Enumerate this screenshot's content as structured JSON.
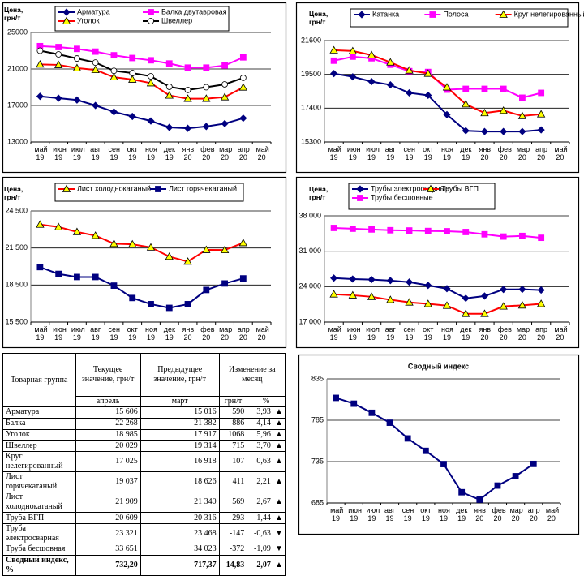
{
  "chart_data": [
    {
      "type": "line",
      "y_label": "Цена, грн/т",
      "categories": [
        "май 19",
        "июн 19",
        "июл 19",
        "авг 19",
        "сен 19",
        "окт 19",
        "ноя 19",
        "дек 19",
        "янв 20",
        "фев 20",
        "мар 20",
        "апр 20",
        "май 20"
      ],
      "ylim": [
        13000,
        25000
      ],
      "yticks": [
        13000,
        17000,
        21000,
        25000
      ],
      "grid": true,
      "series": [
        {
          "name": "Арматура",
          "color": "#000080",
          "marker": "diamond",
          "marker_fill": "#000080",
          "values": [
            18000,
            17800,
            17600,
            17000,
            16300,
            15800,
            15300,
            14600,
            14500,
            14700,
            15016,
            15606,
            null
          ]
        },
        {
          "name": "Балка двутавровая",
          "color": "#ff00ff",
          "marker": "square",
          "marker_fill": "#ff00ff",
          "values": [
            23500,
            23400,
            23200,
            22900,
            22500,
            22200,
            21950,
            21600,
            21150,
            21150,
            21382,
            22268,
            null
          ]
        },
        {
          "name": "Уголок",
          "color": "#ff0000",
          "marker": "triangle",
          "marker_fill": "#ffff00",
          "values": [
            21500,
            21450,
            21100,
            20900,
            20100,
            19850,
            19450,
            18100,
            17750,
            17750,
            17917,
            18985,
            null
          ]
        },
        {
          "name": "Швеллер",
          "color": "#000000",
          "marker": "circle",
          "marker_fill": "#ffffff",
          "values": [
            23000,
            22600,
            22150,
            21700,
            20800,
            20550,
            20200,
            19050,
            18700,
            19000,
            19314,
            20029,
            null
          ]
        }
      ]
    },
    {
      "type": "line",
      "y_label": "Цена, грн/т",
      "categories": [
        "май 19",
        "июн 19",
        "июл 19",
        "авг 19",
        "сен 19",
        "окт 19",
        "ноя 19",
        "дек 19",
        "янв 20",
        "фев 20",
        "мар 20",
        "апр 20",
        "май 20"
      ],
      "ylim": [
        15300,
        21600
      ],
      "yticks": [
        15300,
        17400,
        19500,
        21600
      ],
      "grid": true,
      "series": [
        {
          "name": "Катанка",
          "color": "#000080",
          "marker": "diamond",
          "marker_fill": "#000080",
          "values": [
            19550,
            19350,
            19050,
            18850,
            18350,
            18200,
            17000,
            16000,
            15950,
            15950,
            15950,
            16050,
            null
          ]
        },
        {
          "name": "Полоса",
          "color": "#ff00ff",
          "marker": "square",
          "marker_fill": "#ff00ff",
          "values": [
            20350,
            20600,
            20500,
            20100,
            19700,
            19650,
            18550,
            18600,
            18600,
            18600,
            18050,
            18350,
            null
          ]
        },
        {
          "name": "Круг нелегированный",
          "color": "#ff0000",
          "marker": "triangle",
          "marker_fill": "#ffff00",
          "values": [
            21000,
            20950,
            20700,
            20250,
            19750,
            19550,
            18700,
            17650,
            17100,
            17250,
            16918,
            17025,
            null
          ]
        }
      ]
    },
    {
      "type": "line",
      "y_label": "Цена, грн/т",
      "categories": [
        "май 19",
        "июн 19",
        "июл 19",
        "авг 19",
        "сен 19",
        "окт 19",
        "ноя 19",
        "дек 19",
        "янв 20",
        "фев 20",
        "мар 20",
        "апр 20",
        "май 20"
      ],
      "ylim": [
        15500,
        24500
      ],
      "yticks": [
        {
          "value": 15500,
          "label": "15 500"
        },
        {
          "value": 18500,
          "label": "18 500"
        },
        {
          "value": 21500,
          "label": "21 500"
        },
        {
          "value": 24500,
          "label": "24 500"
        }
      ],
      "grid": true,
      "series": [
        {
          "name": "Лист холоднокатаный",
          "color": "#ff0000",
          "marker": "triangle",
          "marker_fill": "#ffff00",
          "values": [
            23400,
            23200,
            22800,
            22500,
            21850,
            21800,
            21550,
            20800,
            20400,
            21350,
            21340,
            21909,
            null
          ]
        },
        {
          "name": "Лист горячекатаный",
          "color": "#000080",
          "marker": "square",
          "marker_fill": "#000080",
          "values": [
            19950,
            19400,
            19150,
            19150,
            18450,
            17450,
            16950,
            16650,
            16950,
            18100,
            18626,
            19037,
            null
          ]
        }
      ]
    },
    {
      "type": "line",
      "y_label": "Цена, грн/т",
      "categories": [
        "май 19",
        "июн 19",
        "июл 19",
        "авг 19",
        "сен 19",
        "окт 19",
        "ноя 19",
        "дек 19",
        "янв 20",
        "фев 20",
        "мар 20",
        "апр 20",
        "май 20"
      ],
      "ylim": [
        17000,
        38000
      ],
      "yticks": [
        {
          "value": 17000,
          "label": "17 000"
        },
        {
          "value": 24000,
          "label": "24 000"
        },
        {
          "value": 31000,
          "label": "31 000"
        },
        {
          "value": 38000,
          "label": "38 000"
        }
      ],
      "grid": true,
      "series": [
        {
          "name": "Трубы электросварные",
          "color": "#000080",
          "marker": "diamond",
          "marker_fill": "#000080",
          "values": [
            25700,
            25500,
            25400,
            25200,
            24900,
            24250,
            23600,
            21700,
            22150,
            23450,
            23468,
            23321,
            null
          ]
        },
        {
          "name": "Трубы ВГП",
          "color": "#ff0000",
          "marker": "triangle",
          "marker_fill": "#ffff00",
          "values": [
            22500,
            22300,
            22000,
            21400,
            20900,
            20600,
            20250,
            18650,
            18650,
            20100,
            20316,
            20609,
            null
          ]
        },
        {
          "name": "Трубы бесшовные",
          "color": "#ff00ff",
          "marker": "square",
          "marker_fill": "#ff00ff",
          "values": [
            35600,
            35450,
            35300,
            35150,
            35100,
            35000,
            34950,
            34800,
            34350,
            33900,
            34023,
            33651,
            null
          ]
        }
      ]
    },
    {
      "type": "line",
      "title": "Сводный индекс",
      "categories": [
        "май 19",
        "июн 19",
        "июл 19",
        "авг 19",
        "сен 19",
        "окт 19",
        "ноя 19",
        "дек 19",
        "янв 20",
        "фев 20",
        "мар 20",
        "апр 20",
        "май 20"
      ],
      "ylim": [
        685,
        835
      ],
      "yticks": [
        685,
        735,
        785,
        835
      ],
      "grid": true,
      "series": [
        {
          "color": "#000080",
          "marker": "square",
          "marker_fill": "#000080",
          "values": [
            812,
            805,
            794,
            782,
            763,
            748,
            732,
            698,
            689,
            706,
            717.37,
            732.2,
            null
          ]
        }
      ]
    }
  ],
  "table": {
    "headers": {
      "group": "Товарная группа",
      "current": "Текущее значение, грн/т",
      "current_month": "апрель",
      "previous": "Предыдущее значение, грн/т",
      "previous_month": "март",
      "change": "Изменение за месяц",
      "change_abs": "грн/т",
      "change_pct": "%"
    },
    "rows": [
      [
        "Арматура",
        "15 606",
        "15 016",
        "590",
        "3,93",
        "▲"
      ],
      [
        "Балка",
        "22 268",
        "21 382",
        "886",
        "4,14",
        "▲"
      ],
      [
        "Уголок",
        "18 985",
        "17 917",
        "1068",
        "5,96",
        "▲"
      ],
      [
        "Швеллер",
        "20 029",
        "19 314",
        "715",
        "3,70",
        "▲"
      ],
      [
        "Круг нелегированный",
        "17 025",
        "16 918",
        "107",
        "0,63",
        "▲"
      ],
      [
        "Лист горячекатаный",
        "19 037",
        "18 626",
        "411",
        "2,21",
        "▲"
      ],
      [
        "Лист холоднокатаный",
        "21 909",
        "21 340",
        "569",
        "2,67",
        "▲"
      ],
      [
        "Труба ВГП",
        "20 609",
        "20 316",
        "293",
        "1,44",
        "▲"
      ],
      [
        "Труба электросварная",
        "23 321",
        "23 468",
        "-147",
        "-0,63",
        "▼"
      ],
      [
        "Труба бесшовная",
        "33 651",
        "34 023",
        "-372",
        "-1,09",
        "▼"
      ],
      [
        "Сводный индекс, %",
        "732,20",
        "717,37",
        "14,83",
        "2,07",
        "▲"
      ]
    ]
  }
}
